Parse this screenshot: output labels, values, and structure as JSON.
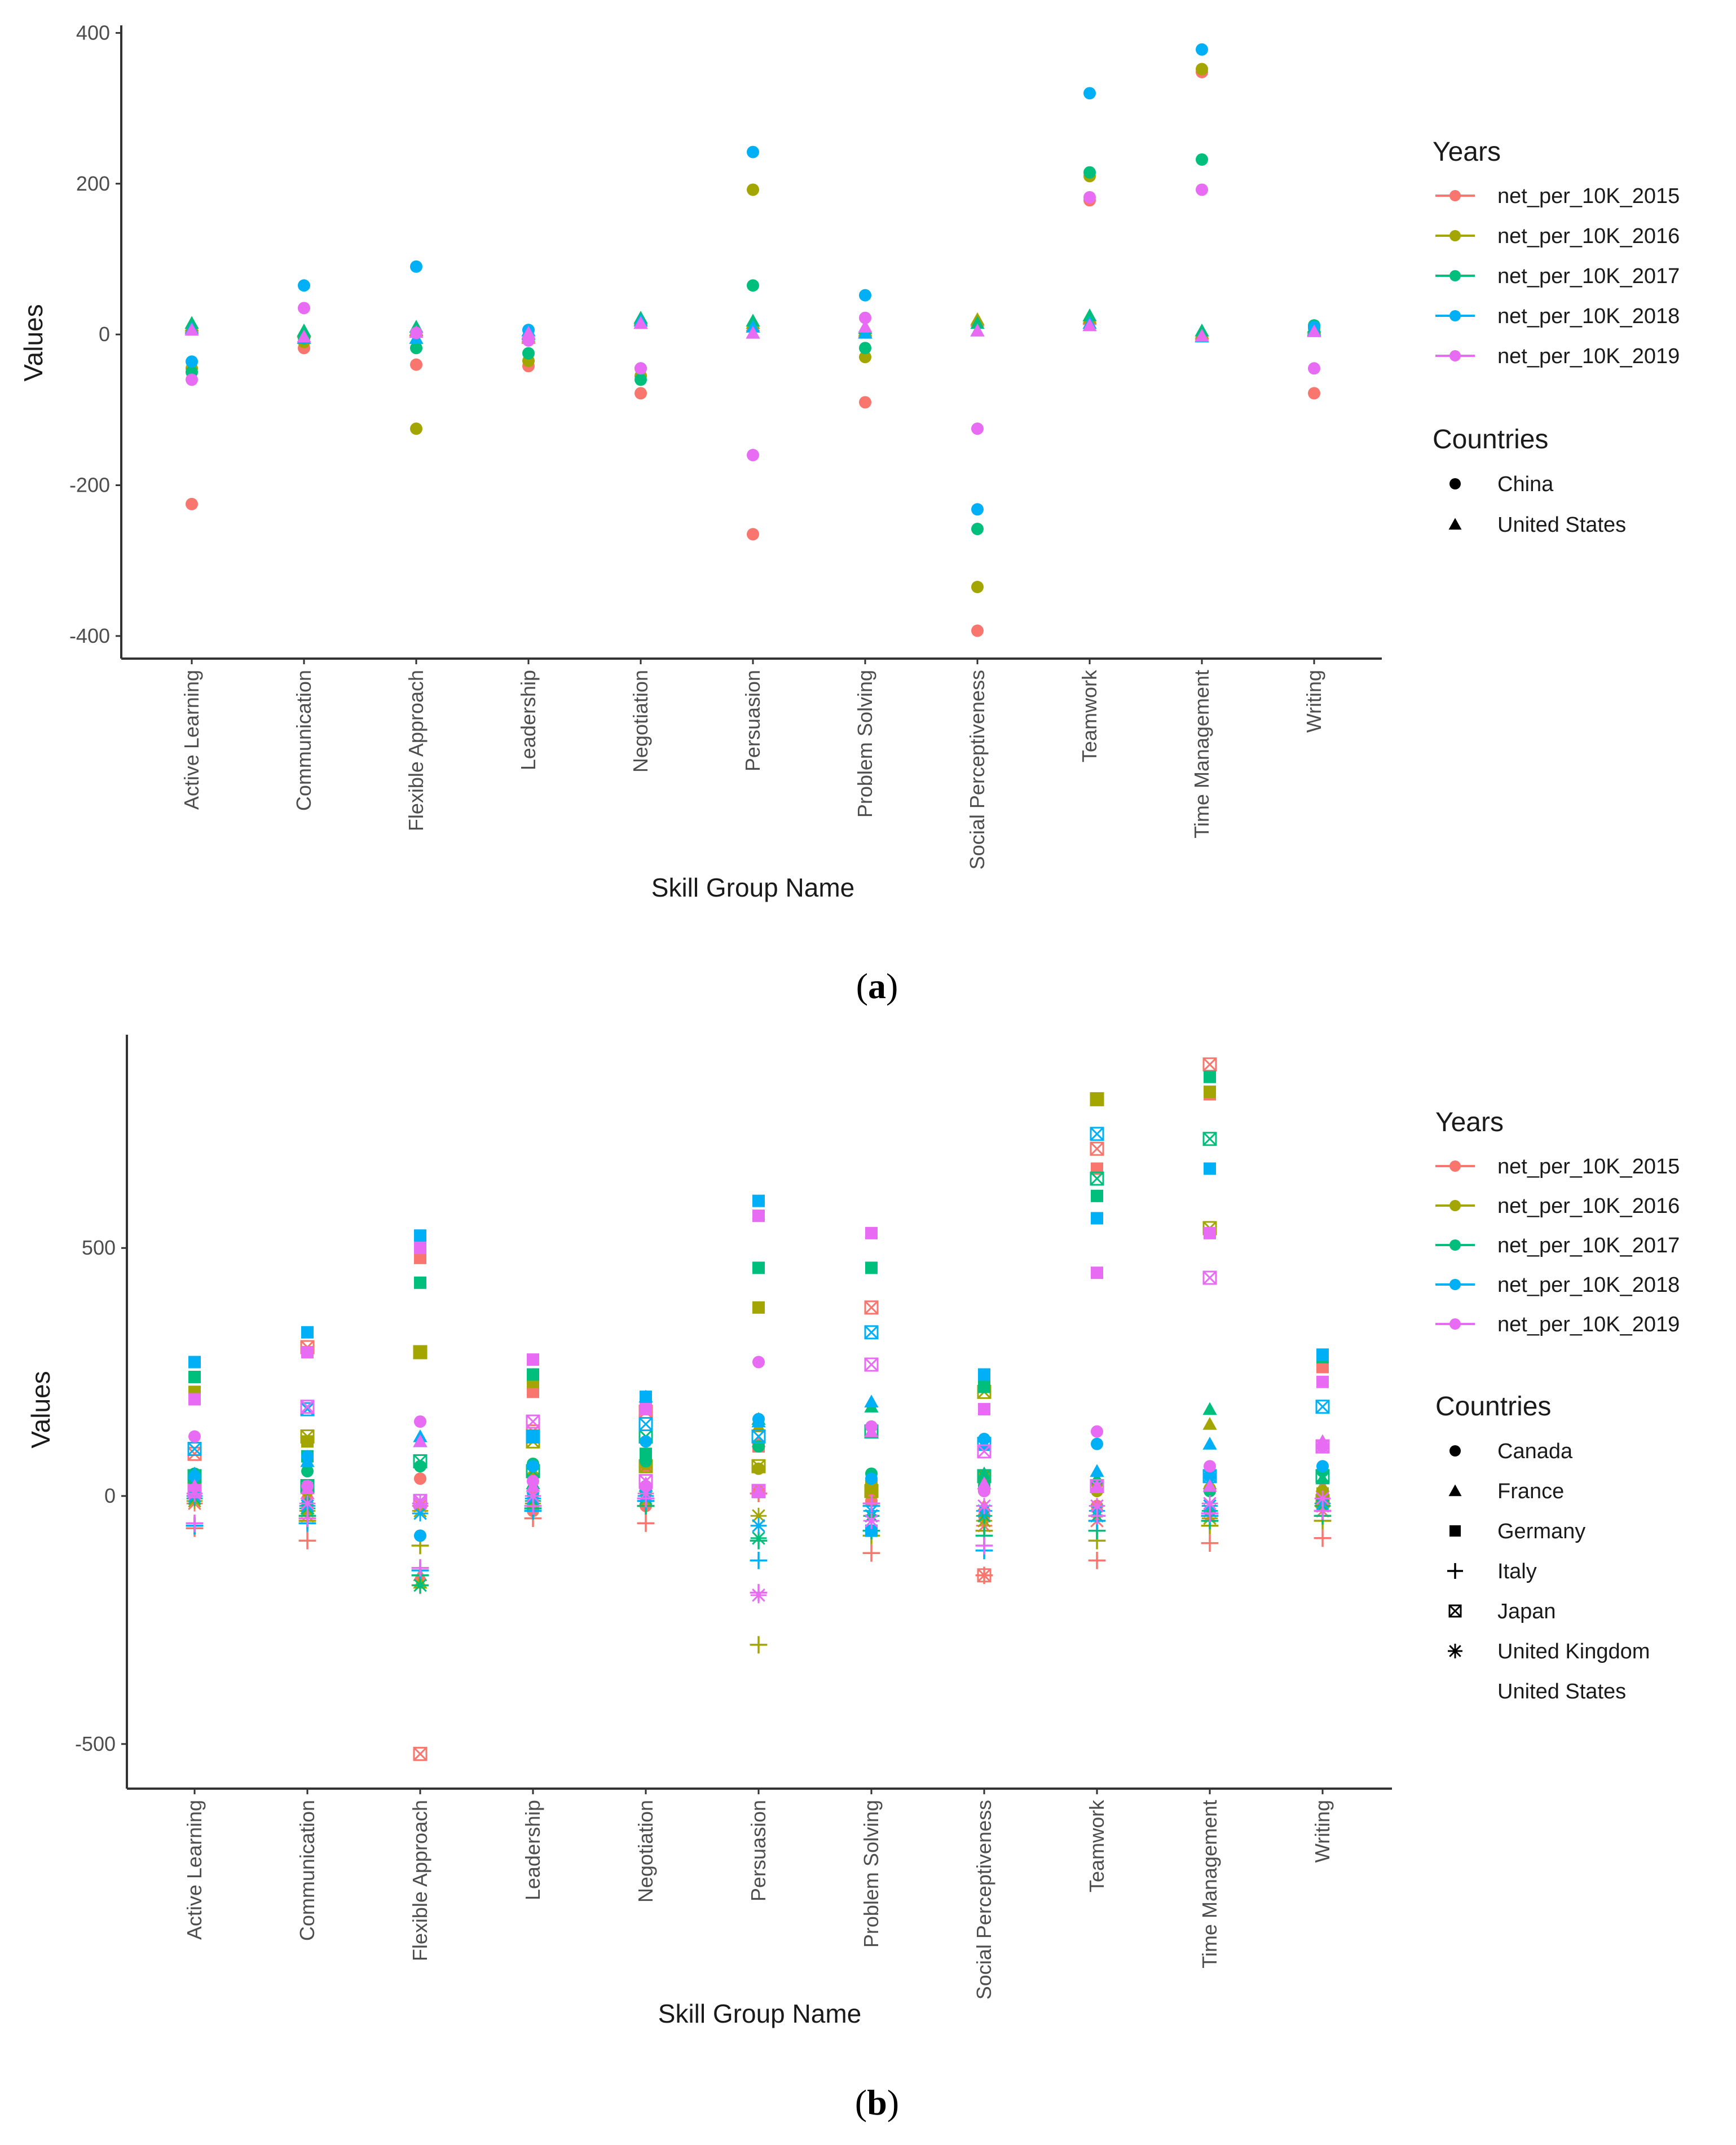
{
  "years_title": "Years",
  "countries_title": "Countries",
  "years": [
    "net_per_10K_2015",
    "net_per_10K_2016",
    "net_per_10K_2017",
    "net_per_10K_2018",
    "net_per_10K_2019"
  ],
  "colors": {
    "net_per_10K_2015": "#F8766D",
    "net_per_10K_2016": "#A3A500",
    "net_per_10K_2017": "#00BF7D",
    "net_per_10K_2018": "#00B0F6",
    "net_per_10K_2019": "#E76BF3"
  },
  "chart_data": [
    {
      "type": "scatter",
      "panel": "(a)",
      "panel_bold": "a",
      "xlabel": "Skill Group Name",
      "ylabel": "Values",
      "ylim": [
        -430,
        410
      ],
      "yticks": [
        400,
        200,
        0,
        -200,
        -400
      ],
      "categories": [
        "Active Learning",
        "Communication",
        "Flexible Approach",
        "Leadership",
        "Negotiation",
        "Persuasion",
        "Problem Solving",
        "Social Perceptiveness",
        "Teamwork",
        "Time Management",
        "Writing"
      ],
      "countries": [
        {
          "name": "China",
          "shape": "circle"
        },
        {
          "name": "United States",
          "shape": "triangle"
        }
      ],
      "series": [
        {
          "name": "net_per_10K_2015",
          "country": "China",
          "values": [
            -225,
            -18,
            -40,
            -42,
            -78,
            -265,
            -90,
            -393,
            178,
            348,
            -78
          ]
        },
        {
          "name": "net_per_10K_2015",
          "country": "United States",
          "values": [
            10,
            3,
            5,
            -5,
            15,
            12,
            3,
            18,
            20,
            0,
            5
          ]
        },
        {
          "name": "net_per_10K_2016",
          "country": "China",
          "values": [
            -45,
            -10,
            -125,
            -35,
            -55,
            192,
            -30,
            -335,
            210,
            352,
            8
          ]
        },
        {
          "name": "net_per_10K_2016",
          "country": "United States",
          "values": [
            12,
            4,
            6,
            -3,
            20,
            15,
            5,
            20,
            22,
            2,
            8
          ]
        },
        {
          "name": "net_per_10K_2017",
          "country": "China",
          "values": [
            -50,
            -5,
            -18,
            -25,
            -60,
            65,
            -18,
            -258,
            215,
            232,
            12
          ]
        },
        {
          "name": "net_per_10K_2017",
          "country": "United States",
          "values": [
            15,
            5,
            10,
            0,
            22,
            18,
            8,
            15,
            25,
            5,
            10
          ]
        },
        {
          "name": "net_per_10K_2018",
          "country": "China",
          "values": [
            -36,
            65,
            90,
            6,
            -45,
            242,
            52,
            -232,
            320,
            378,
            10
          ]
        },
        {
          "name": "net_per_10K_2018",
          "country": "United States",
          "values": [
            8,
            -5,
            -5,
            5,
            18,
            10,
            2,
            5,
            15,
            -3,
            6
          ]
        },
        {
          "name": "net_per_10K_2019",
          "country": "China",
          "values": [
            -60,
            35,
            2,
            -8,
            -45,
            -160,
            22,
            -125,
            182,
            192,
            -45
          ]
        },
        {
          "name": "net_per_10K_2019",
          "country": "United States",
          "values": [
            6,
            -3,
            3,
            2,
            15,
            2,
            10,
            5,
            12,
            -2,
            4
          ]
        }
      ]
    },
    {
      "type": "scatter",
      "panel": "(b)",
      "panel_bold": "b",
      "xlabel": "Skill Group Name",
      "ylabel": "Values",
      "ylim": [
        -590,
        930
      ],
      "yticks": [
        500,
        0,
        -500
      ],
      "categories": [
        "Active Learning",
        "Communication",
        "Flexible Approach",
        "Leadership",
        "Negotiation",
        "Persuasion",
        "Problem Solving",
        "Social Perceptiveness",
        "Teamwork",
        "Time Management",
        "Writing"
      ],
      "countries": [
        {
          "name": "Canada",
          "shape": "circle"
        },
        {
          "name": "France",
          "shape": "triangle"
        },
        {
          "name": "Germany",
          "shape": "square"
        },
        {
          "name": "Italy",
          "shape": "plus"
        },
        {
          "name": "Japan",
          "shape": "boxx"
        },
        {
          "name": "United Kingdom",
          "shape": "asterisk"
        },
        {
          "name": "United States",
          "shape": "none"
        }
      ],
      "series": [
        {
          "name": "net_per_10K_2015",
          "country": "Canada",
          "values": [
            5,
            -20,
            35,
            -30,
            -20,
            10,
            -10,
            -40,
            -20,
            -30,
            -10
          ]
        },
        {
          "name": "net_per_10K_2015",
          "country": "France",
          "values": [
            15,
            5,
            -160,
            10,
            20,
            110,
            20,
            -20,
            20,
            25,
            20
          ]
        },
        {
          "name": "net_per_10K_2015",
          "country": "Germany",
          "values": [
            200,
            290,
            480,
            210,
            60,
            100,
            10,
            20,
            660,
            810,
            260
          ]
        },
        {
          "name": "net_per_10K_2015",
          "country": "Italy",
          "values": [
            -65,
            -90,
            -180,
            -45,
            -55,
            5,
            -115,
            -160,
            -130,
            -95,
            -85
          ]
        },
        {
          "name": "net_per_10K_2015",
          "country": "Japan",
          "values": [
            85,
            300,
            -520,
            130,
            170,
            10,
            380,
            -160,
            700,
            870,
            100
          ]
        },
        {
          "name": "net_per_10K_2015",
          "country": "United Kingdom",
          "values": [
            -15,
            -40,
            -20,
            -20,
            0,
            -60,
            -40,
            -60,
            -50,
            -40,
            -30
          ]
        },
        {
          "name": "net_per_10K_2016",
          "country": "Canada",
          "values": [
            25,
            10,
            60,
            40,
            65,
            55,
            20,
            10,
            10,
            15,
            10
          ]
        },
        {
          "name": "net_per_10K_2016",
          "country": "France",
          "values": [
            30,
            -25,
            -175,
            20,
            15,
            140,
            15,
            25,
            30,
            145,
            5
          ]
        },
        {
          "name": "net_per_10K_2016",
          "country": "Germany",
          "values": [
            210,
            110,
            290,
            230,
            70,
            380,
            20,
            40,
            800,
            815,
            5
          ]
        },
        {
          "name": "net_per_10K_2016",
          "country": "Italy",
          "values": [
            -60,
            -50,
            -100,
            -30,
            -20,
            -300,
            -80,
            -70,
            -90,
            -60,
            -50
          ]
        },
        {
          "name": "net_per_10K_2016",
          "country": "Japan",
          "values": [
            20,
            120,
            290,
            110,
            60,
            60,
            10,
            210,
            800,
            540,
            -10
          ]
        },
        {
          "name": "net_per_10K_2016",
          "country": "United Kingdom",
          "values": [
            -10,
            -30,
            -30,
            -15,
            -10,
            -40,
            -40,
            -50,
            -40,
            -45,
            -20
          ]
        },
        {
          "name": "net_per_10K_2017",
          "country": "Canada",
          "values": [
            45,
            50,
            60,
            65,
            70,
            100,
            45,
            20,
            605,
            10,
            50
          ]
        },
        {
          "name": "net_per_10K_2017",
          "country": "France",
          "values": [
            30,
            -10,
            110,
            25,
            20,
            155,
            180,
            45,
            35,
            175,
            35
          ]
        },
        {
          "name": "net_per_10K_2017",
          "country": "Germany",
          "values": [
            240,
            80,
            430,
            245,
            85,
            460,
            460,
            220,
            605,
            845,
            280
          ]
        },
        {
          "name": "net_per_10K_2017",
          "country": "Italy",
          "values": [
            -60,
            -40,
            -160,
            -25,
            -20,
            -90,
            -70,
            -80,
            -70,
            -50,
            -40
          ]
        },
        {
          "name": "net_per_10K_2017",
          "country": "Japan",
          "values": [
            40,
            20,
            70,
            50,
            120,
            10,
            130,
            40,
            640,
            720,
            40
          ]
        },
        {
          "name": "net_per_10K_2017",
          "country": "United Kingdom",
          "values": [
            -5,
            -25,
            -180,
            -10,
            -5,
            -85,
            -40,
            -40,
            -40,
            -30,
            -20
          ]
        },
        {
          "name": "net_per_10K_2018",
          "country": "Canada",
          "values": [
            40,
            80,
            -80,
            60,
            110,
            155,
            35,
            115,
            105,
            40,
            60
          ]
        },
        {
          "name": "net_per_10K_2018",
          "country": "France",
          "values": [
            45,
            70,
            120,
            120,
            200,
            150,
            190,
            105,
            50,
            105,
            110
          ]
        },
        {
          "name": "net_per_10K_2018",
          "country": "Germany",
          "values": [
            270,
            330,
            525,
            120,
            200,
            595,
            -70,
            245,
            560,
            660,
            285
          ]
        },
        {
          "name": "net_per_10K_2018",
          "country": "Italy",
          "values": [
            -60,
            -55,
            -150,
            -30,
            -10,
            -130,
            -20,
            -110,
            -50,
            -40,
            -30
          ]
        },
        {
          "name": "net_per_10K_2018",
          "country": "Japan",
          "values": [
            95,
            175,
            -10,
            120,
            145,
            120,
            330,
            105,
            730,
            40,
            180
          ]
        },
        {
          "name": "net_per_10K_2018",
          "country": "United Kingdom",
          "values": [
            0,
            -20,
            -35,
            -5,
            0,
            -60,
            -30,
            -30,
            -30,
            -20,
            -15
          ]
        },
        {
          "name": "net_per_10K_2019",
          "country": "Canada",
          "values": [
            120,
            20,
            150,
            30,
            20,
            270,
            140,
            10,
            130,
            60,
            100
          ]
        },
        {
          "name": "net_per_10K_2019",
          "country": "France",
          "values": [
            20,
            15,
            110,
            20,
            25,
            10,
            130,
            25,
            20,
            20,
            110
          ]
        },
        {
          "name": "net_per_10K_2019",
          "country": "Germany",
          "values": [
            195,
            290,
            500,
            275,
            175,
            565,
            530,
            175,
            450,
            530,
            230
          ]
        },
        {
          "name": "net_per_10K_2019",
          "country": "Italy",
          "values": [
            -55,
            -45,
            -145,
            -20,
            -5,
            -195,
            -15,
            -100,
            -40,
            -35,
            -30
          ]
        },
        {
          "name": "net_per_10K_2019",
          "country": "Japan",
          "values": [
            10,
            180,
            -10,
            150,
            30,
            10,
            265,
            90,
            20,
            440,
            100
          ]
        },
        {
          "name": "net_per_10K_2019",
          "country": "United Kingdom",
          "values": [
            5,
            -15,
            -15,
            0,
            5,
            -200,
            -50,
            -20,
            -20,
            -15,
            -5
          ]
        }
      ]
    }
  ]
}
